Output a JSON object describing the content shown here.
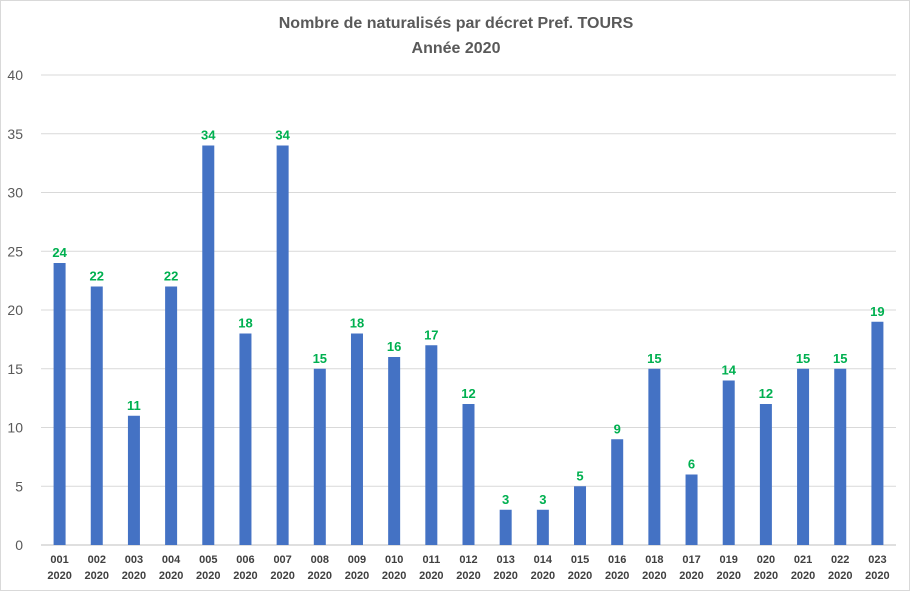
{
  "chart_data": {
    "type": "bar",
    "title": "Nombre de naturalisés par décret Pref. TOURS",
    "subtitle": "Année 2020",
    "xlabel": "",
    "ylabel": "",
    "ylim": [
      0,
      40
    ],
    "yticks": [
      0,
      5,
      10,
      15,
      20,
      25,
      30,
      35,
      40
    ],
    "grid": true,
    "legend": "none",
    "categories": [
      [
        "001",
        "2020"
      ],
      [
        "002",
        "2020"
      ],
      [
        "003",
        "2020"
      ],
      [
        "004",
        "2020"
      ],
      [
        "005",
        "2020"
      ],
      [
        "006",
        "2020"
      ],
      [
        "007",
        "2020"
      ],
      [
        "008",
        "2020"
      ],
      [
        "009",
        "2020"
      ],
      [
        "010",
        "2020"
      ],
      [
        "011",
        "2020"
      ],
      [
        "012",
        "2020"
      ],
      [
        "013",
        "2020"
      ],
      [
        "014",
        "2020"
      ],
      [
        "015",
        "2020"
      ],
      [
        "016",
        "2020"
      ],
      [
        "018",
        "2020"
      ],
      [
        "017",
        "2020"
      ],
      [
        "019",
        "2020"
      ],
      [
        "020",
        "2020"
      ],
      [
        "021",
        "2020"
      ],
      [
        "022",
        "2020"
      ],
      [
        "023",
        "2020"
      ]
    ],
    "values": [
      24,
      22,
      11,
      22,
      34,
      18,
      34,
      15,
      18,
      16,
      17,
      12,
      3,
      3,
      5,
      9,
      15,
      6,
      14,
      12,
      15,
      15,
      19
    ],
    "colors": {
      "bar": "#4472c4",
      "data_label": "#00b050",
      "gridline": "#d9d9d9",
      "axis_text": "#595959"
    }
  }
}
